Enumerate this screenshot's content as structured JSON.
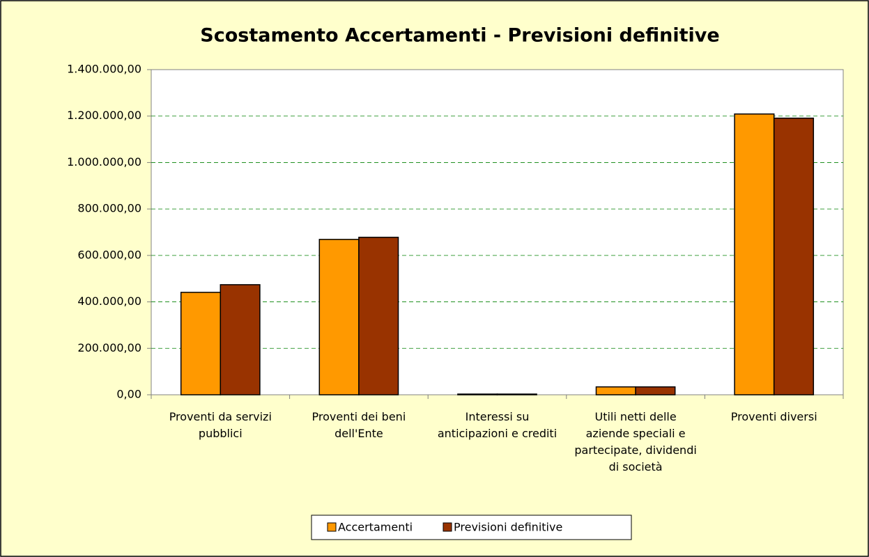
{
  "chart_data": {
    "type": "bar",
    "title": "Scostamento Accertamenti - Previsioni definitive",
    "categories": [
      "Proventi da servizi pubblici",
      "Proventi dei beni dell'Ente",
      "Interessi su anticipazioni e crediti",
      "Utili netti delle aziende speciali e partecipate, dividendi di società",
      "Proventi diversi"
    ],
    "series": [
      {
        "name": "Accertamenti",
        "color": "#ff9900",
        "values": [
          441000,
          669000,
          3000,
          34000,
          1209000
        ]
      },
      {
        "name": "Previsioni definitive",
        "color": "#993300",
        "values": [
          474000,
          678000,
          3000,
          34000,
          1191000
        ]
      }
    ],
    "ylim": [
      0,
      1400000
    ],
    "yticks": [
      {
        "value": 0,
        "label": "0,00"
      },
      {
        "value": 200000,
        "label": "200.000,00"
      },
      {
        "value": 400000,
        "label": "400.000,00"
      },
      {
        "value": 600000,
        "label": "600.000,00"
      },
      {
        "value": 800000,
        "label": "800.000,00"
      },
      {
        "value": 1000000,
        "label": "1.000.000,00"
      },
      {
        "value": 1200000,
        "label": "1.200.000,00"
      },
      {
        "value": 1400000,
        "label": "1.400.000,00"
      }
    ],
    "grid": true,
    "legend": "bottom"
  }
}
